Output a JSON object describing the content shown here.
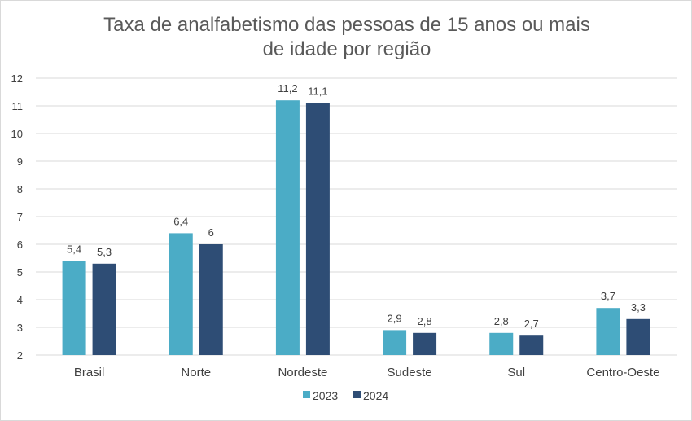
{
  "chart_data": {
    "type": "bar",
    "title": [
      "Taxa de analfabetismo das pessoas de 15 anos ou mais",
      "de idade por região"
    ],
    "categories": [
      "Brasil",
      "Norte",
      "Nordeste",
      "Sudeste",
      "Sul",
      "Centro-Oeste"
    ],
    "series": [
      {
        "name": "2023",
        "values": [
          5.4,
          6.4,
          11.2,
          2.9,
          2.8,
          3.7
        ],
        "labels": [
          "5,4",
          "6,4",
          "11,2",
          "2,9",
          "2,8",
          "3,7"
        ],
        "color": "#4bacc6"
      },
      {
        "name": "2024",
        "values": [
          5.3,
          6.0,
          11.1,
          2.8,
          2.7,
          3.3
        ],
        "labels": [
          "5,3",
          "6",
          "11,1",
          "2,8",
          "2,7",
          "3,3"
        ],
        "color": "#2e4d75"
      }
    ],
    "ylim": [
      2,
      12
    ],
    "yticks": [
      2,
      3,
      4,
      5,
      6,
      7,
      8,
      9,
      10,
      11,
      12
    ],
    "grid": true,
    "legend_position": "bottom"
  }
}
